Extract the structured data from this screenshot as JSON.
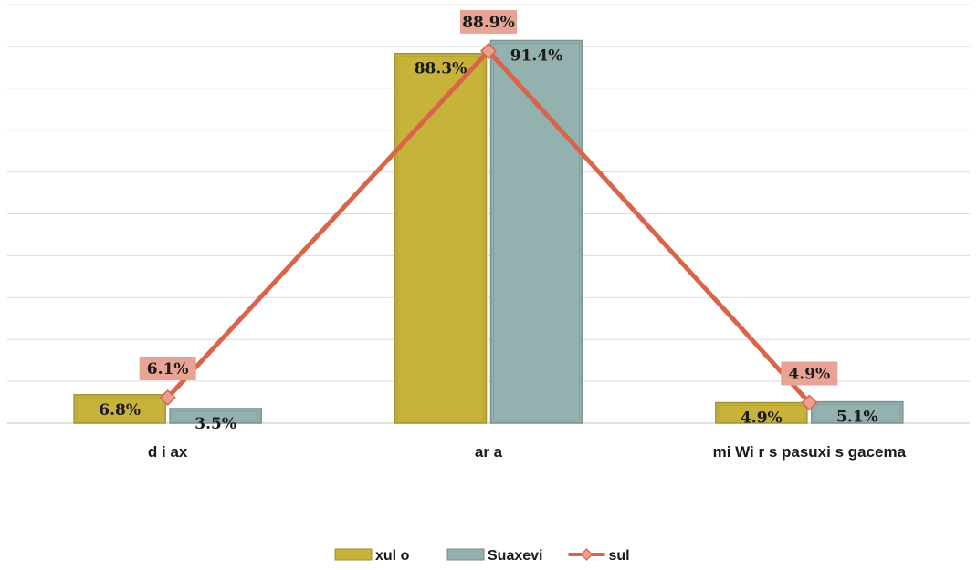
{
  "chart_data": {
    "type": "bar",
    "categories": [
      "d i ax",
      "ar  a",
      "mi Wi r  s pasuxi s gacema"
    ],
    "ylim": [
      0,
      100
    ],
    "grid": true,
    "legend_position": "bottom",
    "series": [
      {
        "name": "xul  o",
        "kind": "bar",
        "color": "#c8b33a",
        "values": [
          6.8,
          88.3,
          4.9
        ],
        "labels": [
          "6.8%",
          "88.3%",
          "4.9%"
        ]
      },
      {
        "name": "Suaxevi",
        "kind": "bar",
        "color": "#93b1af",
        "values": [
          3.5,
          91.4,
          5.1
        ],
        "labels": [
          "3.5%",
          "91.4%",
          "5.1%"
        ]
      },
      {
        "name": "sul",
        "kind": "line",
        "color": "#d9644a",
        "values": [
          6.1,
          88.9,
          4.9
        ],
        "labels": [
          "6.1%",
          "88.9%",
          "4.9%"
        ]
      }
    ]
  }
}
